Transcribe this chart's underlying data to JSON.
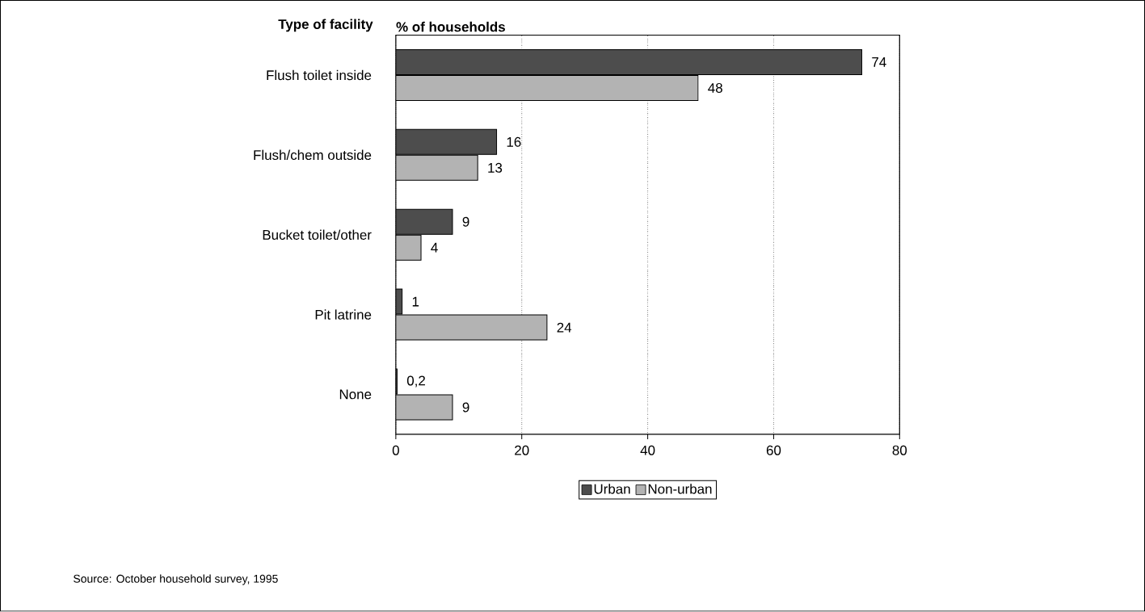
{
  "chart_data": {
    "type": "bar",
    "orientation": "horizontal",
    "xlabel": "% of households",
    "ylabel": "Type of facility",
    "categories": [
      "Flush toilet inside",
      "Flush/chem outside",
      "Bucket toilet/other",
      "Pit latrine",
      "None"
    ],
    "series": [
      {
        "name": "Urban",
        "color": "#4d4d4d",
        "values": [
          74,
          16,
          9,
          1,
          0.2
        ],
        "value_labels": [
          "74",
          "16",
          "9",
          "1",
          "0,2"
        ]
      },
      {
        "name": "Non-urban",
        "color": "#b3b3b3",
        "values": [
          48,
          13,
          4,
          24,
          9
        ],
        "value_labels": [
          "48",
          "13",
          "4",
          "24",
          "9"
        ]
      }
    ],
    "xlim": [
      0,
      80
    ],
    "xticks": [
      0,
      20,
      40,
      60,
      80
    ],
    "grid": "x",
    "legend": "bottom",
    "annotations": [
      "Source: October household survey, 1995"
    ]
  }
}
